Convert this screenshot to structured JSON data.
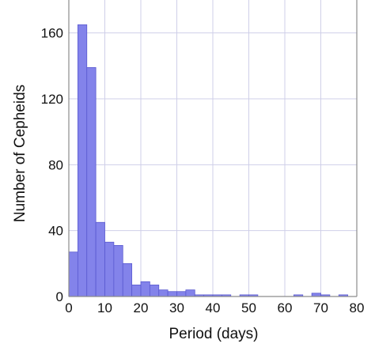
{
  "chart_data": {
    "type": "bar",
    "title": "",
    "xlabel": "Period (days)",
    "ylabel": "Number of Cepheids",
    "xlim": [
      0,
      80
    ],
    "ylim": [
      0,
      180
    ],
    "x_ticks": [
      0,
      10,
      20,
      30,
      40,
      50,
      60,
      70,
      80
    ],
    "y_ticks": [
      0,
      40,
      80,
      120,
      160
    ],
    "grid": true,
    "bin_width": 2.5,
    "bins": [
      {
        "start": 0,
        "end": 2.5,
        "value": 27
      },
      {
        "start": 2.5,
        "end": 5,
        "value": 165
      },
      {
        "start": 5,
        "end": 7.5,
        "value": 139
      },
      {
        "start": 7.5,
        "end": 10,
        "value": 45
      },
      {
        "start": 10,
        "end": 12.5,
        "value": 33
      },
      {
        "start": 12.5,
        "end": 15,
        "value": 31
      },
      {
        "start": 15,
        "end": 17.5,
        "value": 20
      },
      {
        "start": 17.5,
        "end": 20,
        "value": 7
      },
      {
        "start": 20,
        "end": 22.5,
        "value": 9
      },
      {
        "start": 22.5,
        "end": 25,
        "value": 7
      },
      {
        "start": 25,
        "end": 27.5,
        "value": 4
      },
      {
        "start": 27.5,
        "end": 30,
        "value": 3
      },
      {
        "start": 30,
        "end": 32.5,
        "value": 3
      },
      {
        "start": 32.5,
        "end": 35,
        "value": 4
      },
      {
        "start": 35,
        "end": 37.5,
        "value": 1
      },
      {
        "start": 37.5,
        "end": 40,
        "value": 1
      },
      {
        "start": 40,
        "end": 42.5,
        "value": 1
      },
      {
        "start": 42.5,
        "end": 45,
        "value": 1
      },
      {
        "start": 47.5,
        "end": 50,
        "value": 1
      },
      {
        "start": 50,
        "end": 52.5,
        "value": 1
      },
      {
        "start": 62.5,
        "end": 65,
        "value": 1
      },
      {
        "start": 67.5,
        "end": 70,
        "value": 2
      },
      {
        "start": 70,
        "end": 72.5,
        "value": 1
      },
      {
        "start": 75,
        "end": 77.5,
        "value": 1
      }
    ],
    "bar_color": "#8383ea",
    "bar_edge_color": "#5a5ad0",
    "grid_color": "#cfcfe8",
    "axis_color": "#8c8c8c"
  }
}
